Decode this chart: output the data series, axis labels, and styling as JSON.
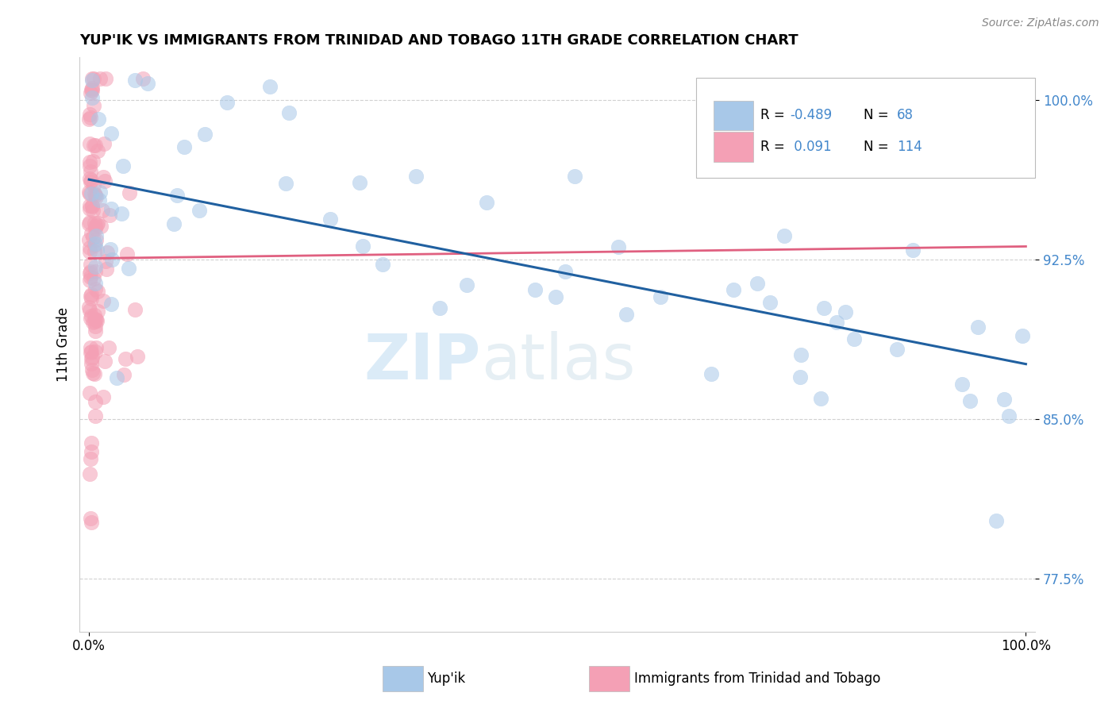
{
  "title": "YUP'IK VS IMMIGRANTS FROM TRINIDAD AND TOBAGO 11TH GRADE CORRELATION CHART",
  "source": "Source: ZipAtlas.com",
  "ylabel": "11th Grade",
  "legend_blue_label": "Yup'ik",
  "legend_pink_label": "Immigrants from Trinidad and Tobago",
  "R_blue": -0.489,
  "N_blue": 68,
  "R_pink": 0.091,
  "N_pink": 114,
  "blue_color": "#a8c8e8",
  "pink_color": "#f4a0b5",
  "blue_line_color": "#2060a0",
  "pink_line_color": "#e06080",
  "watermark_color": "#d0e8f5",
  "blue_seed": 42,
  "pink_seed": 7,
  "xlim": [
    0,
    100
  ],
  "ylim": [
    75.0,
    102.0
  ],
  "yticks": [
    77.5,
    85.0,
    92.5,
    100.0
  ],
  "ytick_labels": [
    "77.5%",
    "85.0%",
    "92.5%",
    "100.0%"
  ]
}
